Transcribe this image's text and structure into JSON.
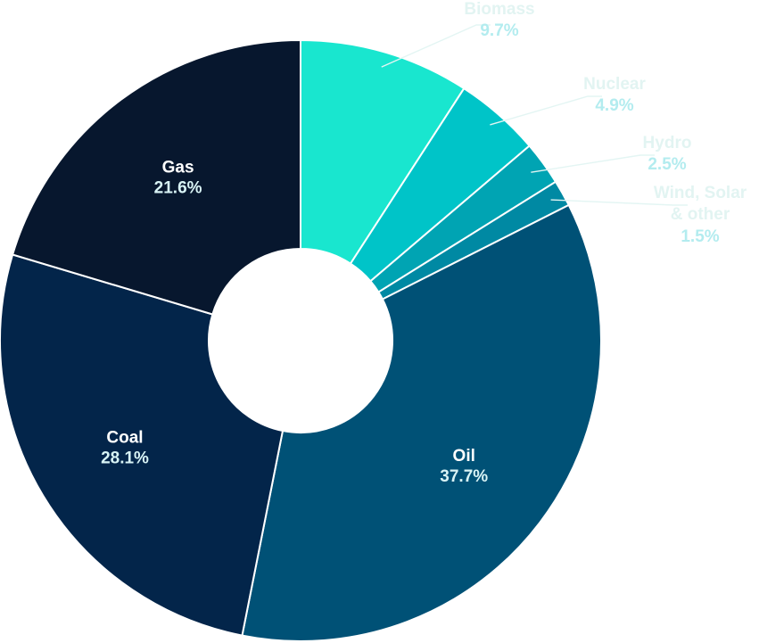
{
  "chart_data": {
    "type": "pie",
    "donut": true,
    "title": "",
    "units": "%",
    "series": [
      {
        "values": [
          {
            "label": "Biomass",
            "value": 9.7,
            "value_label": "9.7%",
            "color": "#19e6cf",
            "placement": "outside"
          },
          {
            "label": "Nuclear",
            "value": 4.9,
            "value_label": "4.9%",
            "color": "#00c4c8",
            "placement": "outside"
          },
          {
            "label": "Hydro",
            "value": 2.5,
            "value_label": "2.5%",
            "color": "#00a4b3",
            "placement": "outside"
          },
          {
            "label": "Wind, Solar",
            "label_line2": "& other",
            "value": 1.5,
            "value_label": "1.5%",
            "color": "#0089a3",
            "placement": "outside"
          },
          {
            "label": "Oil",
            "value": 37.7,
            "value_label": "37.7%",
            "color": "#005176",
            "placement": "inside"
          },
          {
            "label": "Coal",
            "value": 28.1,
            "value_label": "28.1%",
            "color": "#03254a",
            "placement": "inside"
          },
          {
            "label": "Gas",
            "value": 21.6,
            "value_label": "21.6%",
            "color": "#07172e",
            "placement": "inside"
          }
        ]
      }
    ],
    "start": "top",
    "direction": "clockwise",
    "legend": "none"
  }
}
